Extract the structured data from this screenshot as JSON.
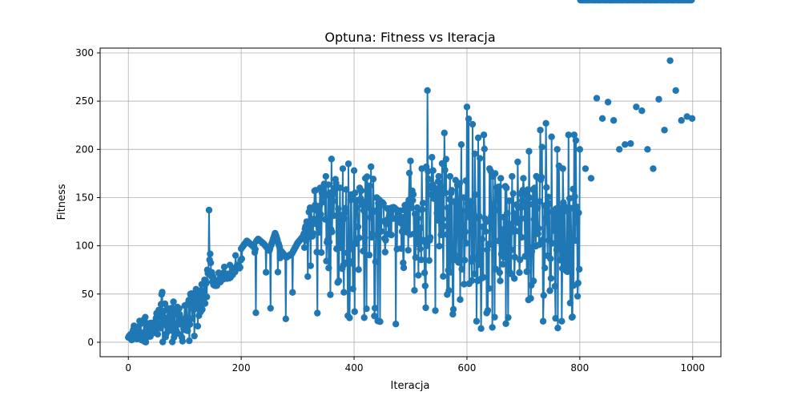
{
  "chart_data": {
    "type": "line",
    "title": "Optuna: Fitness vs Iteracja",
    "xlabel": "Iteracja",
    "ylabel": "Fitness",
    "xlim": [
      -50,
      1050
    ],
    "ylim": [
      -15,
      305
    ],
    "xticks": [
      0,
      200,
      400,
      600,
      800,
      1000
    ],
    "yticks": [
      0,
      50,
      100,
      150,
      200,
      250,
      300
    ],
    "grid": true,
    "legend": "none",
    "colors": {
      "series": "#1f77b4",
      "grid": "#b0b0b0"
    },
    "n_points": 1000,
    "series": [
      {
        "marker": "circle",
        "x": [
          0,
          10,
          20,
          30,
          40,
          50,
          60,
          70,
          80,
          90,
          100,
          110,
          120,
          130,
          140,
          143,
          150,
          160,
          170,
          180,
          190,
          200,
          210,
          220,
          230,
          240,
          250,
          260,
          262,
          270,
          280,
          290,
          300,
          310,
          320,
          330,
          340,
          350,
          360,
          370,
          380,
          390,
          400,
          410,
          420,
          430,
          440,
          450,
          460,
          470,
          480,
          490,
          500,
          510,
          520,
          530,
          540,
          550,
          560,
          570,
          580,
          590,
          600,
          610,
          620,
          630,
          640,
          650,
          660,
          670,
          680,
          690,
          700,
          710,
          720,
          730,
          740,
          750,
          760,
          770,
          780,
          790,
          800,
          810,
          820,
          830,
          840,
          850,
          860,
          870,
          880,
          890,
          900,
          910,
          920,
          930,
          940,
          950,
          960,
          970,
          980,
          990,
          1000
        ],
        "low": [
          0,
          0,
          0,
          0,
          0,
          0,
          0,
          0,
          0,
          0,
          0,
          0,
          3,
          30,
          45,
          55,
          50,
          55,
          60,
          60,
          65,
          70,
          60,
          30,
          30,
          40,
          20,
          10,
          0,
          5,
          10,
          0,
          0,
          0,
          10,
          20,
          10,
          0,
          30,
          25,
          20,
          15,
          30,
          25,
          20,
          15,
          10,
          20,
          15,
          10,
          20,
          30,
          15,
          10,
          25,
          20,
          20,
          15,
          15,
          25,
          20,
          15,
          25,
          20,
          15,
          10,
          15,
          10,
          12,
          0,
          15,
          20,
          15,
          10,
          15,
          20,
          20,
          10,
          15,
          10,
          10,
          15,
          10,
          15,
          15,
          0,
          15,
          5,
          0,
          10,
          20,
          5,
          10,
          15,
          5,
          5,
          10,
          10,
          5,
          5,
          10,
          10,
          30
        ],
        "high": [
          5,
          17,
          22,
          26,
          20,
          30,
          52,
          35,
          42,
          35,
          38,
          50,
          55,
          60,
          75,
          137,
          68,
          72,
          78,
          80,
          90,
          97,
          105,
          100,
          107,
          102,
          95,
          113,
          110,
          95,
          88,
          92,
          103,
          110,
          135,
          157,
          160,
          172,
          190,
          160,
          180,
          185,
          178,
          160,
          170,
          182,
          150,
          145,
          138,
          140,
          135,
          142,
          188,
          130,
          180,
          261,
          178,
          172,
          217,
          172,
          168,
          205,
          244,
          226,
          212,
          215,
          180,
          175,
          170,
          160,
          172,
          187,
          170,
          198,
          160,
          220,
          227,
          213,
          200,
          180,
          215,
          215,
          200,
          180,
          170,
          253,
          232,
          249,
          230,
          200,
          205,
          206,
          244,
          240,
          200,
          180,
          252,
          220,
          292,
          261,
          230,
          234,
          232
        ],
        "point_values": [
          55,
          62,
          80,
          70,
          90,
          100,
          85,
          92,
          110,
          120,
          95,
          115,
          130,
          125,
          105,
          140,
          150,
          118,
          122,
          135,
          128,
          145,
          160,
          112,
          108,
          138,
          142,
          155,
          125,
          130,
          100,
          170,
          148,
          152,
          115,
          120,
          135,
          126,
          140,
          165,
          110,
          132,
          118,
          145,
          122,
          138,
          150,
          128,
          116,
          160,
          134,
          112,
          142,
          120,
          105,
          130,
          148,
          125,
          138,
          115,
          128,
          122,
          110,
          118,
          102,
          132,
          96,
          112,
          126,
          120,
          105,
          118,
          110,
          125,
          108,
          130,
          115,
          95,
          102,
          120,
          88,
          112,
          72
        ]
      }
    ]
  }
}
